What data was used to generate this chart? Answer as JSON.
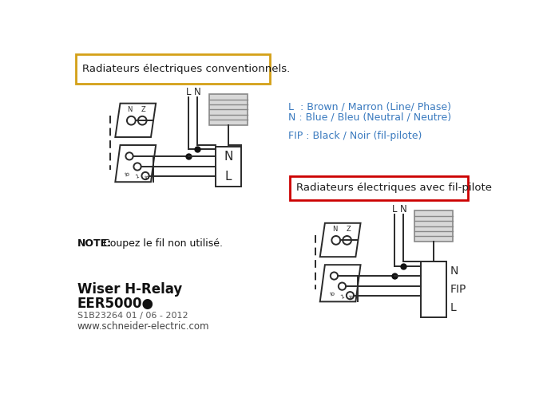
{
  "bg_color": "#ffffff",
  "title_box1_text": "Radiateurs électriques conventionnels.",
  "title_box1_color": "#d4a017",
  "title_box2_text": "Radiateurs électriques avec fil-pilote",
  "title_box2_color": "#cc0000",
  "legend_L": "L  : Brown / Marron (Line/ Phase)",
  "legend_N": "N : Blue / Bleu (Neutral / Neutre)",
  "legend_FIP": "FIP : Black / Noir (fil-pilote)",
  "legend_color": "#3a7abf",
  "note_bold": "NOTE:",
  "note_rest": " Coupez le fil non utilisé.",
  "brand_line1": "Wiser H-Relay",
  "brand_line2": "EER5000●",
  "brand_line3": "S1B23264 01 / 06 - 2012",
  "brand_line4": "www.schneider-electric.com",
  "wire_color": "#2a2a2a",
  "radiator_fill": "#d8d8d8",
  "radiator_line": "#888888",
  "junction_color": "#111111"
}
